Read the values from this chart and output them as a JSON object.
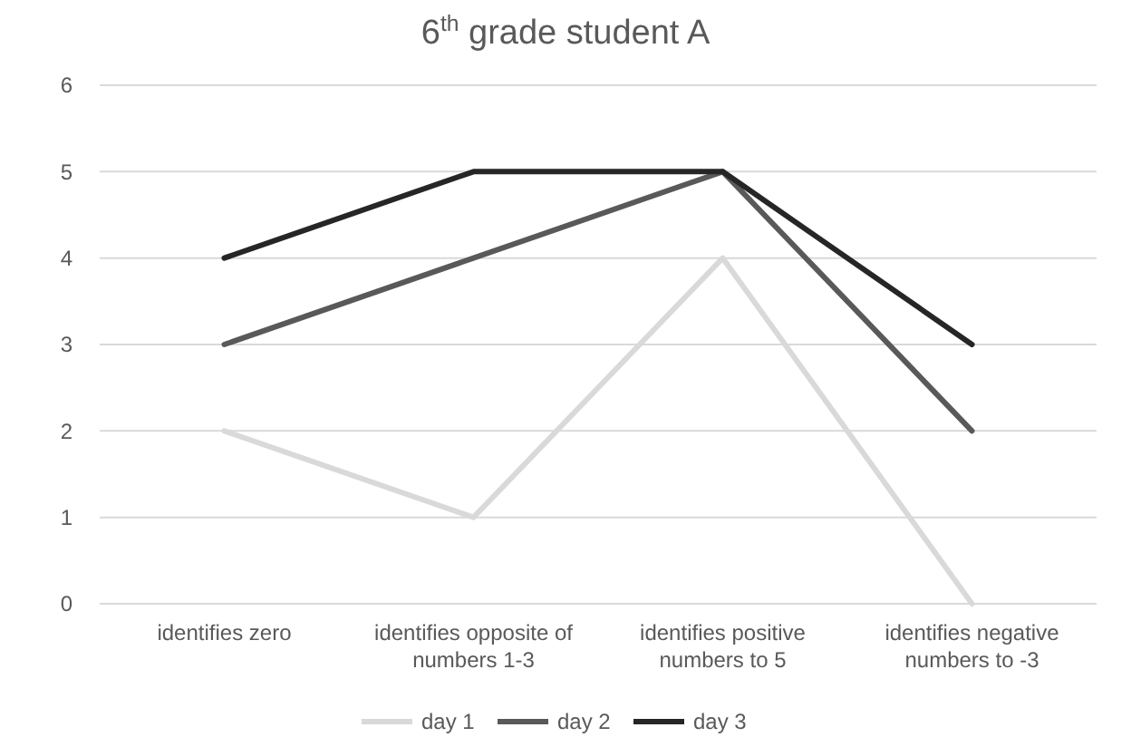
{
  "chart_data": {
    "type": "line",
    "title": "6$^{th}$ grade student A",
    "categories": [
      "identifies zero",
      "identifies opposite of numbers 1-3",
      "identifies positive numbers to 5",
      "identifies negative numbers to -3"
    ],
    "series": [
      {
        "name": "day 1",
        "color": "#d9d9d9",
        "values": [
          2,
          1,
          4,
          0
        ]
      },
      {
        "name": "day 2",
        "color": "#595959",
        "values": [
          3,
          4,
          5,
          2
        ]
      },
      {
        "name": "day 3",
        "color": "#262626",
        "values": [
          4,
          5,
          5,
          3
        ]
      }
    ],
    "ylim": [
      0,
      6
    ],
    "yticks": [
      0,
      1,
      2,
      3,
      4,
      5,
      6
    ],
    "grid": "y",
    "legend": "bottom",
    "marker": "none",
    "line_style": "solid"
  }
}
